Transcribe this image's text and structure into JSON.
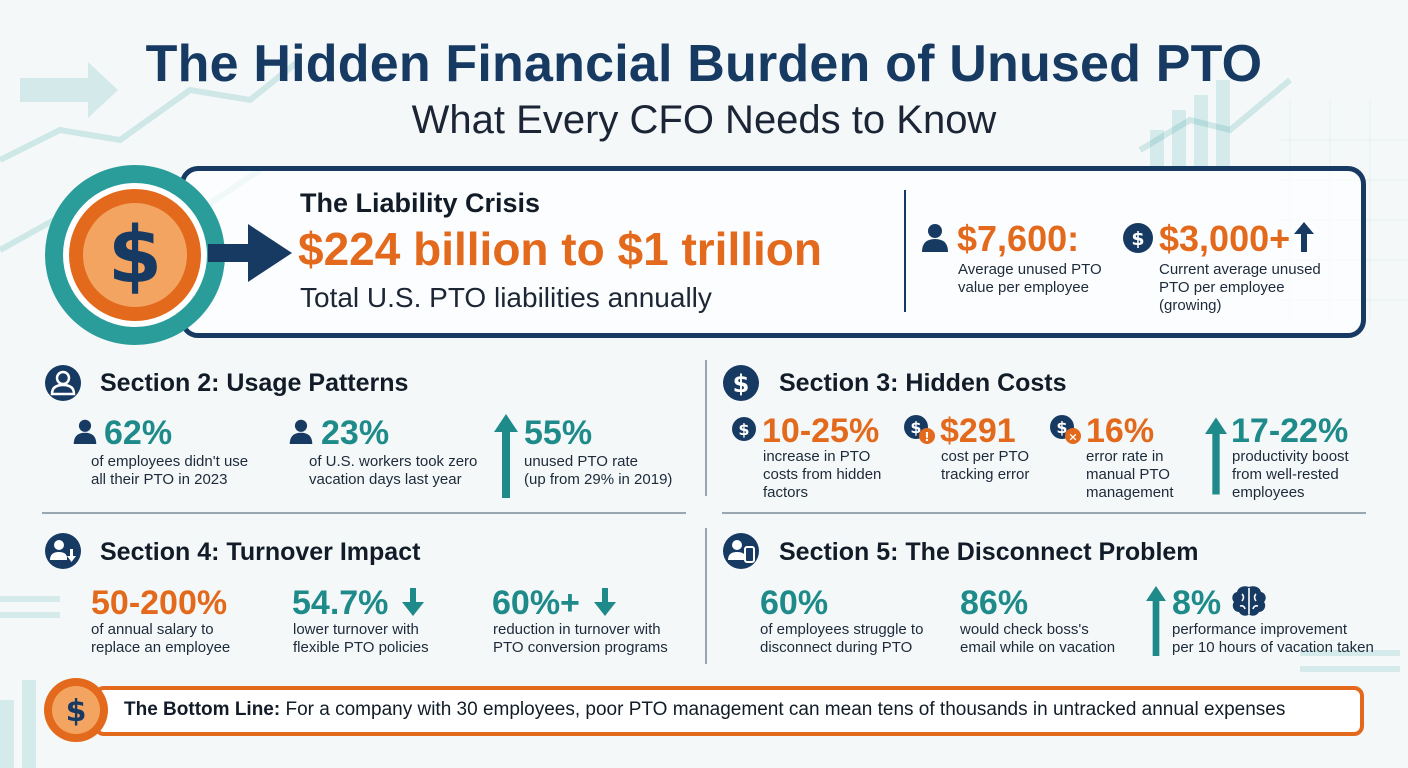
{
  "header": {
    "title": "The Hidden Financial Burden of Unused PTO",
    "subtitle": "What Every CFO Needs to Know"
  },
  "liability": {
    "label": "The Liability Crisis",
    "value": "$224 billion to $1 trillion",
    "note": "Total U.S. PTO liabilities annually",
    "stats": [
      {
        "value": "$7,600:",
        "note_line1": "Average unused PTO",
        "note_line2": "value per employee",
        "note_line3": ""
      },
      {
        "value": "$3,000+",
        "note_line1": "Current average unused",
        "note_line2": "PTO per employee",
        "note_line3": "(growing)"
      }
    ]
  },
  "section2": {
    "title": "Section 2: Usage Patterns",
    "items": [
      {
        "value": "62%",
        "line1": "of employees didn't use",
        "line2": "all their PTO in 2023"
      },
      {
        "value": "23%",
        "line1": "of U.S. workers took zero",
        "line2": "vacation days last year"
      },
      {
        "value": "55%",
        "line1": "unused PTO rate",
        "line2": "(up from 29% in 2019)"
      }
    ]
  },
  "section3": {
    "title": "Section 3: Hidden Costs",
    "items": [
      {
        "value": "10-25%",
        "line1": "increase in PTO",
        "line2": "costs from hidden",
        "line3": "factors"
      },
      {
        "value": "$291",
        "line1": "cost per PTO",
        "line2": "tracking error",
        "line3": ""
      },
      {
        "value": "16%",
        "line1": "error rate in",
        "line2": "manual PTO",
        "line3": "management"
      },
      {
        "value": "17-22%",
        "line1": "productivity boost",
        "line2": "from well-rested",
        "line3": "employees"
      }
    ]
  },
  "section4": {
    "title": "Section 4: Turnover Impact",
    "items": [
      {
        "value": "50-200%",
        "line1": "of annual salary to",
        "line2": "replace an employee"
      },
      {
        "value": "54.7%",
        "line1": "lower turnover with",
        "line2": "flexible PTO policies"
      },
      {
        "value": "60%+",
        "line1": "reduction in turnover with",
        "line2": "PTO conversion programs"
      }
    ]
  },
  "section5": {
    "title": "Section 5: The Disconnect Problem",
    "items": [
      {
        "value": "60%",
        "line1": "of employees struggle to",
        "line2": "disconnect during PTO"
      },
      {
        "value": "86%",
        "line1": "would check boss's",
        "line2": "email while on vacation"
      },
      {
        "value": "8%",
        "line1": "performance improvement",
        "line2": "per 10 hours of vacation taken"
      }
    ]
  },
  "bottom_line": {
    "label": "The Bottom Line:",
    "text": "For a company with 30 employees, poor PTO management can mean tens of thousands in untracked annual expenses"
  },
  "colors": {
    "navy": "#173a63",
    "orange": "#e36a1c",
    "teal": "#1e8a8a",
    "teal_ring": "#2a9d9a"
  },
  "icons": [
    "dollar-coin-icon",
    "person-icon",
    "up-arrow-icon",
    "down-arrow-icon",
    "brain-icon",
    "warning-icon",
    "phone-person-icon"
  ]
}
